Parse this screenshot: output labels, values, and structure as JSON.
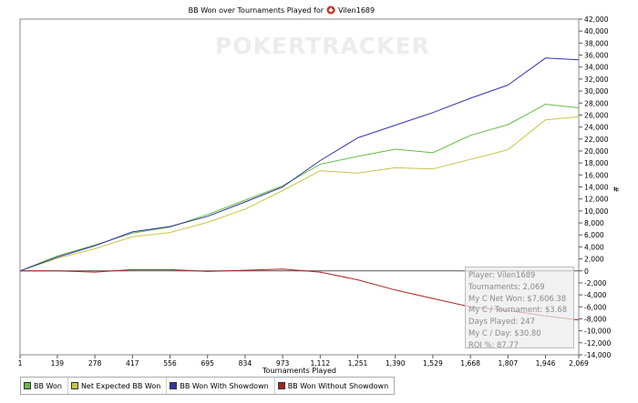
{
  "title_prefix": "BB Won over Tournaments Played for",
  "player_name": "Vilen1689",
  "watermark": "POKERTRACKER",
  "stats": {
    "player": "Player: Vilen1689",
    "tournaments": "Tournaments: 2,069",
    "net_won": "My C Net Won: $7,606.38",
    "per_tournament": "My C / Tournament: $3.68",
    "days_played": "Days Played: 247",
    "per_day": "My C / Day: $30.80",
    "roi": "ROI %: 87.77"
  },
  "chart_data": {
    "type": "line",
    "title": "BB Won over Tournaments Played for Vilen1689",
    "xlabel": "Tournaments Played",
    "ylabel": "#",
    "xlim": [
      1,
      2069
    ],
    "ylim": [
      -14000,
      42000
    ],
    "x_ticks": [
      1,
      139,
      278,
      417,
      556,
      695,
      834,
      973,
      1112,
      1251,
      1390,
      1529,
      1668,
      1807,
      1946,
      2069
    ],
    "x_tick_labels": [
      "1",
      "139",
      "278",
      "417",
      "556",
      "695",
      "834",
      "973",
      "1,112",
      "1,251",
      "1,390",
      "1,529",
      "1,668",
      "1,807",
      "1,946",
      "2,069"
    ],
    "y_ticks": [
      -14000,
      -12000,
      -10000,
      -8000,
      -6000,
      -4000,
      -2000,
      0,
      2000,
      4000,
      6000,
      8000,
      10000,
      12000,
      14000,
      16000,
      18000,
      20000,
      22000,
      24000,
      26000,
      28000,
      30000,
      32000,
      34000,
      36000,
      38000,
      40000,
      42000
    ],
    "y_tick_labels": [
      "-14,000",
      "-12,000",
      "-10,000",
      "-8,000",
      "-6,000",
      "-4,000",
      "-2,000",
      "0",
      "2,000",
      "4,000",
      "6,000",
      "8,000",
      "10,000",
      "12,000",
      "14,000",
      "16,000",
      "18,000",
      "20,000",
      "22,000",
      "24,000",
      "26,000",
      "28,000",
      "30,000",
      "32,000",
      "34,000",
      "36,000",
      "38,000",
      "40,000",
      "42,000"
    ],
    "grid": false,
    "legend_position": "bottom-left",
    "x": [
      1,
      139,
      278,
      417,
      556,
      695,
      834,
      973,
      1112,
      1251,
      1390,
      1529,
      1668,
      1807,
      1946,
      2069
    ],
    "series": [
      {
        "name": "BB Won",
        "color": "#66bb44",
        "values": [
          0,
          2500,
          4300,
          6300,
          7300,
          9400,
          11800,
          14200,
          17800,
          19100,
          20300,
          19700,
          22600,
          24400,
          27800,
          27200
        ]
      },
      {
        "name": "Net Expected BB Won",
        "color": "#c8c44a",
        "values": [
          0,
          2100,
          3700,
          5700,
          6400,
          8100,
          10300,
          13400,
          16700,
          16300,
          17200,
          17000,
          18600,
          20200,
          25200,
          25700
        ]
      },
      {
        "name": "BB Won With Showdown",
        "color": "#3333aa",
        "values": [
          0,
          2300,
          4200,
          6500,
          7400,
          9100,
          11500,
          14000,
          18400,
          22200,
          24300,
          26400,
          28800,
          31000,
          35500,
          35200
        ]
      },
      {
        "name": "BB Won Without Showdown",
        "color": "#aa2222",
        "values": [
          0,
          0,
          -200,
          200,
          200,
          -100,
          100,
          300,
          -200,
          -1500,
          -3200,
          -4600,
          -6000,
          -6600,
          -7500,
          -8200
        ]
      }
    ]
  }
}
